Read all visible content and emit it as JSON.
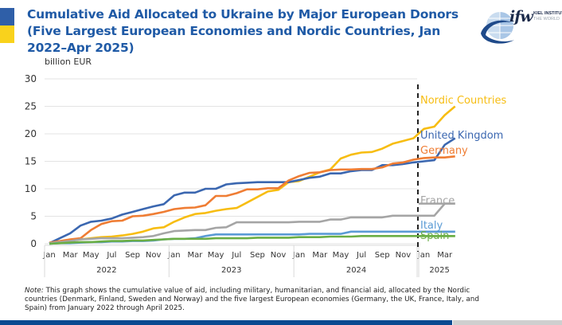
{
  "header": {
    "title": "Cumulative Aid Allocated to Ukraine by Major European Donors (Five Largest European Economies and Nordic Countries, Jan 2022–Apr 2025)",
    "logo": {
      "name": "ifw",
      "line1": "KIEL INSTITUTE",
      "line2": "THE WORLD"
    },
    "flag_colors": [
      "#2f5fa8",
      "#f9d21c"
    ]
  },
  "note": {
    "label": "Note:",
    "text": " This graph shows the cumulative value of aid, including military, humanitarian, and financial aid, allocated by the Nordic countries (Denmark, Finland, Sweden and Norway) and the five largest European economies (Germany, the UK, France, Italy, and Spain) from January 2022 through April 2025."
  },
  "chart_data": {
    "type": "line",
    "title": "Cumulative Aid Allocated to Ukraine by Major European Donors (Five Largest European Economies and Nordic Countries, Jan 2022–Apr 2025)",
    "ylabel": "billion EUR",
    "xlabel": "",
    "ylim": [
      0,
      30
    ],
    "yticks": [
      0,
      5,
      10,
      15,
      20,
      25,
      30
    ],
    "grid": true,
    "legend": "inline-right",
    "x": [
      "2022-01",
      "2022-02",
      "2022-03",
      "2022-04",
      "2022-05",
      "2022-06",
      "2022-07",
      "2022-08",
      "2022-09",
      "2022-10",
      "2022-11",
      "2022-12",
      "2023-01",
      "2023-02",
      "2023-03",
      "2023-04",
      "2023-05",
      "2023-06",
      "2023-07",
      "2023-08",
      "2023-09",
      "2023-10",
      "2023-11",
      "2023-12",
      "2024-01",
      "2024-02",
      "2024-03",
      "2024-04",
      "2024-05",
      "2024-06",
      "2024-07",
      "2024-08",
      "2024-09",
      "2024-10",
      "2024-11",
      "2024-12",
      "2025-01",
      "2025-02",
      "2025-03",
      "2025-04"
    ],
    "x_tick_labels": [
      "Jan",
      "Mar",
      "May",
      "Jul",
      "Sep",
      "Nov",
      "Jan",
      "Mar",
      "May",
      "Jul",
      "Sep",
      "Nov",
      "Jan",
      "Mar",
      "May",
      "Jul",
      "Sep",
      "Nov",
      "Jan",
      "Mar"
    ],
    "year_labels": [
      "2022",
      "2023",
      "2024",
      "2025"
    ],
    "vline": {
      "at": "2024-12",
      "style": "dashed"
    },
    "series": [
      {
        "name": "Nordic Countries",
        "color": "#f7bd12",
        "values": [
          0.1,
          0.3,
          0.6,
          0.8,
          1.0,
          1.2,
          1.3,
          1.5,
          1.8,
          2.2,
          2.8,
          3.0,
          4.0,
          4.8,
          5.4,
          5.6,
          6.0,
          6.3,
          6.5,
          7.5,
          8.5,
          9.5,
          9.8,
          11.2,
          11.4,
          12.2,
          13.0,
          13.5,
          15.5,
          16.2,
          16.6,
          16.7,
          17.3,
          18.2,
          18.7,
          19.2,
          20.9,
          21.3,
          23.4,
          25.0
        ]
      },
      {
        "name": "United Kingdom",
        "color": "#3b67b0",
        "values": [
          0.1,
          1.0,
          1.9,
          3.3,
          4.0,
          4.2,
          4.6,
          5.3,
          5.8,
          6.3,
          6.8,
          7.2,
          8.8,
          9.3,
          9.3,
          10.0,
          10.0,
          10.8,
          11.0,
          11.1,
          11.2,
          11.2,
          11.2,
          11.2,
          11.6,
          12.0,
          12.2,
          12.8,
          12.8,
          13.2,
          13.4,
          13.4,
          14.3,
          14.3,
          14.5,
          14.8,
          15.0,
          15.2,
          18.0,
          19.2
        ]
      },
      {
        "name": "Germany",
        "color": "#ef7d34",
        "values": [
          0.2,
          0.5,
          0.8,
          1.0,
          2.5,
          3.6,
          4.1,
          4.2,
          5.0,
          5.1,
          5.4,
          5.8,
          6.3,
          6.5,
          6.6,
          7.0,
          8.7,
          8.7,
          9.2,
          9.9,
          9.9,
          10.1,
          10.1,
          11.5,
          12.3,
          12.9,
          13.0,
          13.4,
          13.5,
          13.5,
          13.6,
          13.6,
          13.9,
          14.6,
          14.8,
          15.3,
          15.6,
          15.7,
          15.7,
          15.9
        ]
      },
      {
        "name": "France",
        "color": "#a5a5a5",
        "values": [
          0.1,
          0.3,
          0.5,
          0.8,
          0.9,
          1.0,
          1.0,
          1.0,
          1.1,
          1.2,
          1.4,
          1.9,
          2.3,
          2.4,
          2.5,
          2.5,
          2.9,
          3.0,
          3.9,
          3.9,
          3.9,
          3.9,
          3.9,
          3.9,
          4.0,
          4.0,
          4.0,
          4.4,
          4.4,
          4.8,
          4.8,
          4.8,
          4.8,
          5.1,
          5.1,
          5.1,
          5.1,
          5.1,
          7.3,
          7.3
        ]
      },
      {
        "name": "Italy",
        "color": "#5b9bd5",
        "values": [
          0.0,
          0.1,
          0.1,
          0.2,
          0.3,
          0.3,
          0.4,
          0.4,
          0.5,
          0.5,
          0.6,
          0.8,
          0.9,
          0.9,
          1.0,
          1.4,
          1.7,
          1.7,
          1.7,
          1.7,
          1.7,
          1.7,
          1.7,
          1.7,
          1.7,
          1.8,
          1.8,
          1.8,
          1.8,
          2.2,
          2.2,
          2.2,
          2.2,
          2.2,
          2.2,
          2.2,
          2.2,
          2.2,
          2.2,
          2.2
        ]
      },
      {
        "name": "Spain",
        "color": "#6aae45",
        "values": [
          0.0,
          0.1,
          0.2,
          0.3,
          0.3,
          0.4,
          0.5,
          0.5,
          0.6,
          0.6,
          0.7,
          0.8,
          0.9,
          0.9,
          0.9,
          0.9,
          1.0,
          1.0,
          1.0,
          1.0,
          1.1,
          1.1,
          1.1,
          1.1,
          1.2,
          1.2,
          1.2,
          1.3,
          1.3,
          1.3,
          1.4,
          1.4,
          1.4,
          1.4,
          1.4,
          1.4,
          1.4,
          1.4,
          1.4,
          1.4
        ]
      }
    ]
  }
}
